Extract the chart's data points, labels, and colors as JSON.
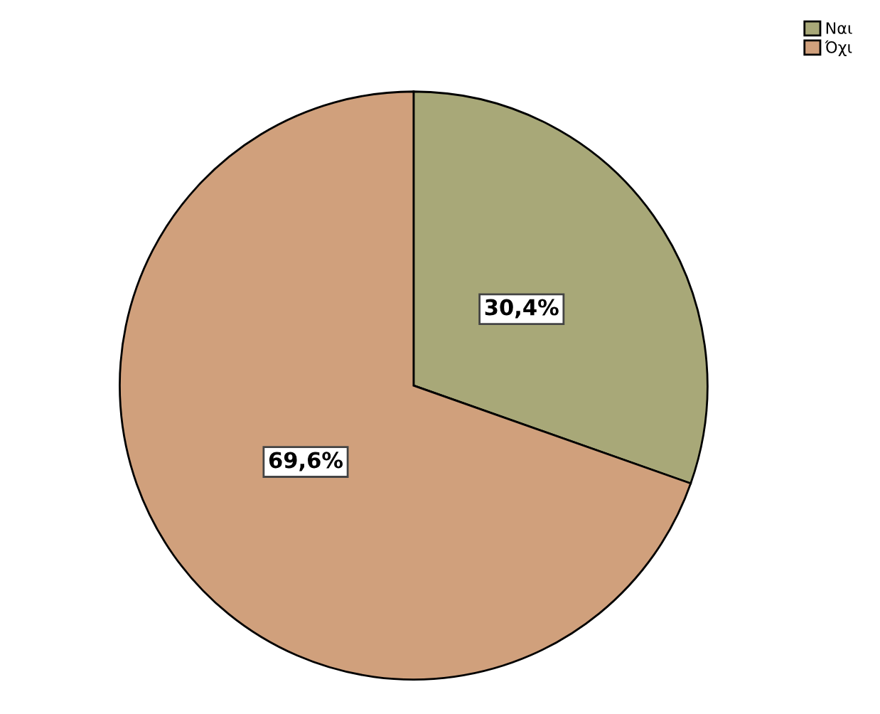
{
  "chart_data": {
    "type": "pie",
    "categories": [
      "Ναι",
      "Όχι"
    ],
    "values": [
      30.4,
      69.6
    ],
    "colors": [
      "#a8a878",
      "#d0a07c"
    ],
    "value_labels": [
      "30,4%",
      "69,6%"
    ],
    "legend": "top right"
  }
}
